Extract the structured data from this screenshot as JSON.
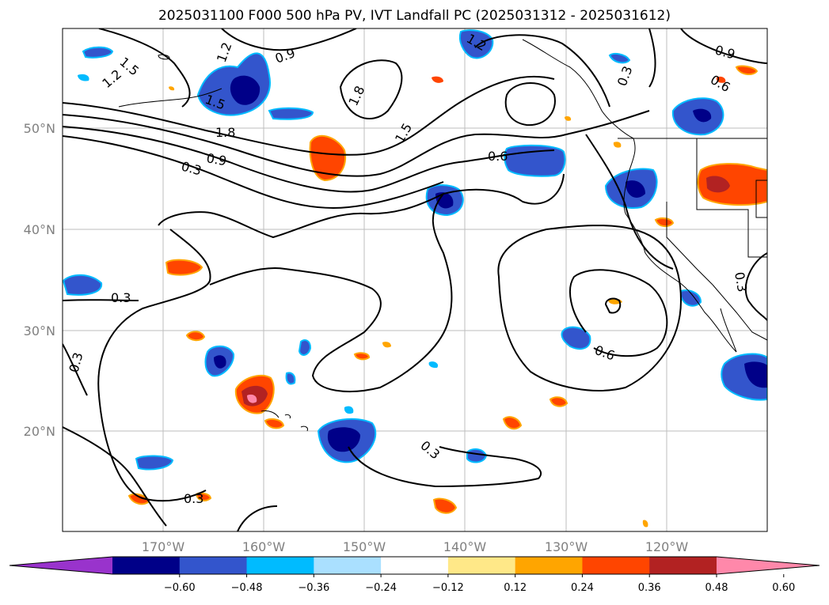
{
  "title": "2025031100 F000 500 hPa PV, IVT Landfall PC (2025031312 - 2025031612)",
  "lon_labels": [
    "170°W",
    "160°W",
    "150°W",
    "140°W",
    "130°W",
    "120°W"
  ],
  "lat_labels": [
    "50°N",
    "40°N",
    "30°N",
    "20°N"
  ],
  "colorbar": {
    "ticks": [
      "−0.60",
      "−0.48",
      "−0.36",
      "−0.24",
      "−0.12",
      "0.12",
      "0.24",
      "0.36",
      "0.48",
      "0.60"
    ],
    "colors": [
      "#9933cc",
      "#000088",
      "#3355cc",
      "#00bbff",
      "#aae0ff",
      "#ffffff",
      "#ffe888",
      "#ffa500",
      "#ff4500",
      "#b22222",
      "#ff88aa"
    ]
  },
  "contour_labels": [
    "1.5",
    "1.2",
    "1.2",
    "1.5",
    "0.9",
    "1.8",
    "0.9",
    "0.3",
    "1.8",
    "1.5",
    "1.2",
    "0.6",
    "0.9",
    "0.6",
    "0.3",
    "0.3",
    "0.3",
    "0.3",
    "0.6",
    "0.3",
    "0.3"
  ]
}
